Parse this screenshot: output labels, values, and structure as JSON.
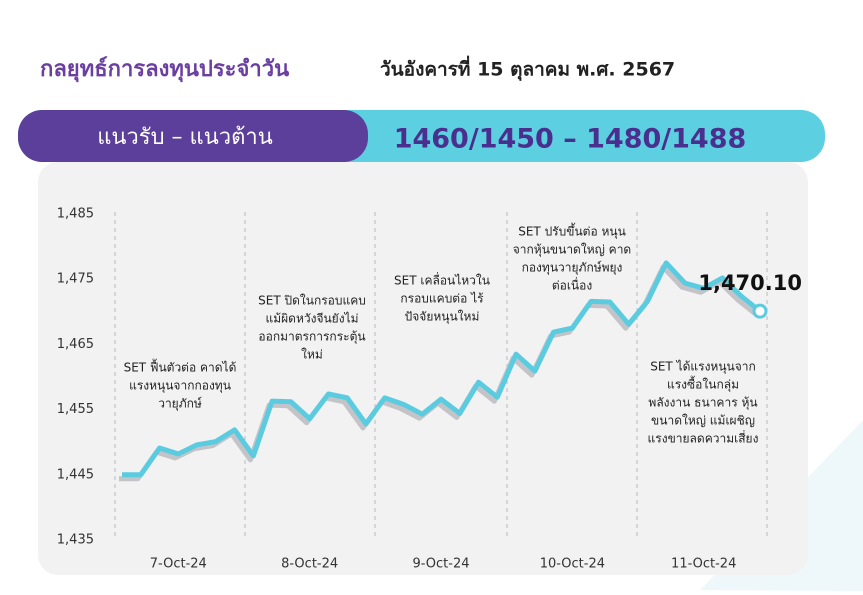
{
  "header": {
    "title": "กลยุทธ์การลงทุนประจำวัน",
    "date": "วันอังคารที่ 15 ตุลาคม พ.ศ. 2567",
    "band_label": "แนวรับ – แนวต้าน",
    "band_value": "1460/1450 – 1480/1488"
  },
  "chart_data": {
    "type": "line",
    "categories": [
      null,
      null,
      null,
      "7-Oct-24",
      null,
      null,
      null,
      null,
      null,
      null,
      "8-Oct-24",
      null,
      null,
      null,
      null,
      null,
      null,
      "9-Oct-24",
      null,
      null,
      null,
      null,
      null,
      null,
      "10-Oct-24",
      null,
      null,
      null,
      null,
      null,
      null,
      "11-Oct-24",
      null,
      null,
      null
    ],
    "series": [
      {
        "color": "#5bcbe0",
        "values": [
          1445.0,
          1445.0,
          1449.1,
          1448.2,
          1449.6,
          1450.1,
          1451.9,
          1447.9,
          1456.3,
          1456.2,
          1453.6,
          1457.4,
          1456.8,
          1452.8,
          1456.8,
          1455.8,
          1454.3,
          1456.6,
          1454.4,
          1459.2,
          1456.9,
          1463.5,
          1460.9,
          1466.9,
          1467.5,
          1471.6,
          1471.5,
          1468.1,
          1471.6,
          1477.5,
          1474.4,
          1473.6,
          1475.2,
          1472.4,
          1470.1
        ],
        "value_labels": [
          null,
          null,
          null,
          null,
          null,
          null,
          null,
          null,
          null,
          null,
          null,
          null,
          null,
          null,
          null,
          null,
          null,
          null,
          null,
          null,
          null,
          null,
          null,
          null,
          null,
          null,
          null,
          null,
          null,
          null,
          null,
          null,
          null,
          null,
          "1,470.10"
        ]
      }
    ],
    "ylim": [
      1435,
      1485
    ],
    "yticks": [
      {
        "value": 1435,
        "label": "1,435"
      },
      {
        "value": 1445,
        "label": "1,445"
      },
      {
        "value": 1455,
        "label": "1,455"
      },
      {
        "value": 1465,
        "label": "1,465"
      },
      {
        "value": 1475,
        "label": "1,475"
      },
      {
        "value": 1485,
        "label": "1,485"
      }
    ],
    "annotations": [
      {
        "lines": [
          "SET ฟื้นตัวต่อ คาดได้",
          "แรงหนุนจากกองทุน",
          "วายุภักษ์"
        ]
      },
      {
        "lines": [
          "SET ปิดในกรอบแคบ",
          "แม้ผิดหวังจีนยังไม่",
          "ออกมาตรการกระตุ้น",
          "ใหม่"
        ]
      },
      {
        "lines": [
          "SET เคลื่อนไหวใน",
          "กรอบแคบต่อ ไร้",
          "ปัจจัยหนุนใหม่"
        ]
      },
      {
        "lines": [
          "SET ปรับขึ้นต่อ หนุน",
          "จากหุ้นขนาดใหญ่ คาด",
          "กองทุนวายุภักษ์พยุง",
          "ต่อเนื่อง"
        ]
      },
      {
        "lines": [
          "SET ได้แรงหนุนจาก",
          "แรงซื้อในกลุ่ม",
          "พลังงาน ธนาคาร หุ้น",
          "ขนาดใหญ่ แม้เผชิญ",
          "แรงขายลดความเสี่ยง"
        ]
      }
    ]
  }
}
